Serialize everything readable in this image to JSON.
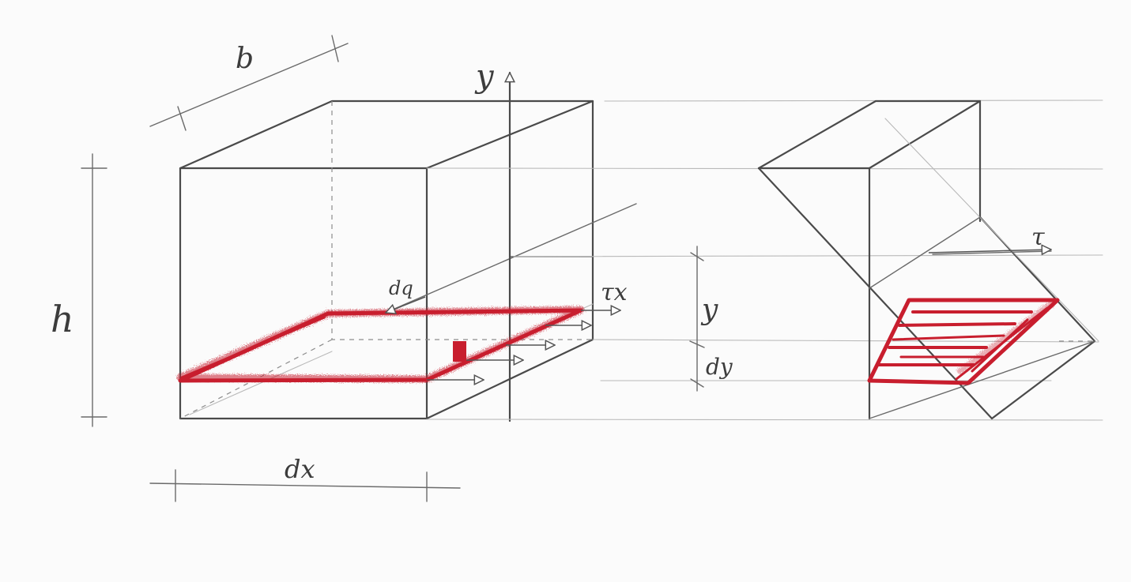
{
  "labels": {
    "b": "b",
    "h": "h",
    "dx": "dx",
    "y_axis": "y",
    "tau_x": "τx",
    "dq": "dq",
    "y_dim": "y",
    "dy": "dy",
    "tau": "τ"
  },
  "colors": {
    "pencil": "#4a4a4a",
    "highlight": "#c81e2e",
    "paper": "#fbfbfb"
  }
}
